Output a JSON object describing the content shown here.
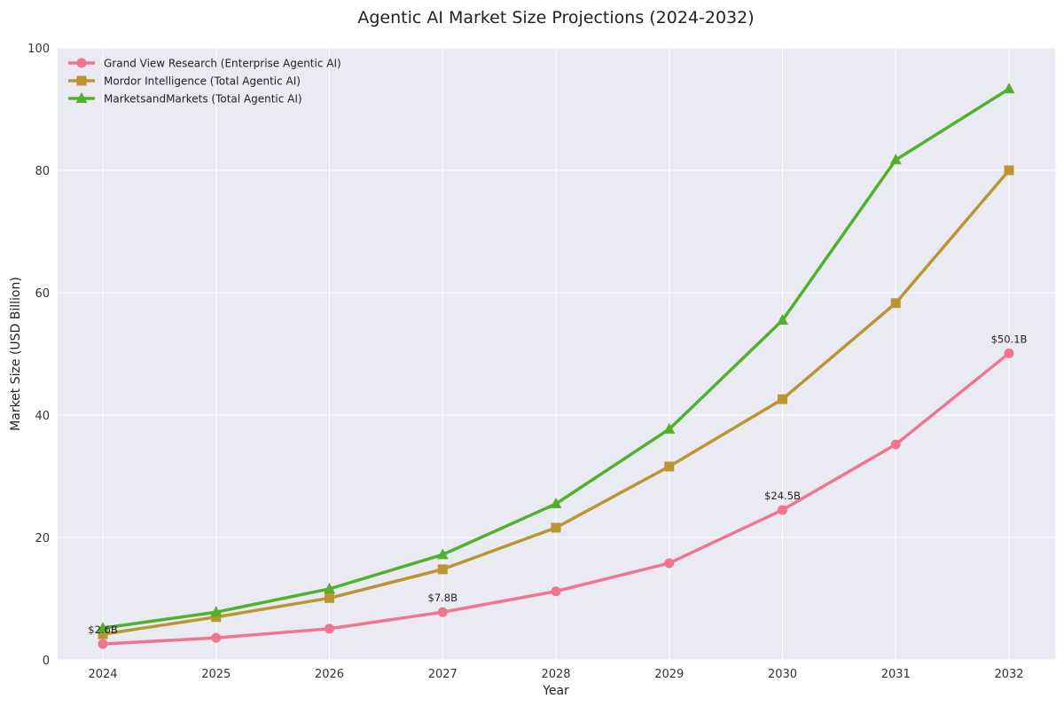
{
  "chart_data": {
    "type": "line",
    "title": "Agentic AI Market Size Projections (2024-2032)",
    "xlabel": "Year",
    "ylabel": "Market Size (USD Billion)",
    "x": [
      2024,
      2025,
      2026,
      2027,
      2028,
      2029,
      2030,
      2031,
      2032
    ],
    "x_tick_labels": [
      "2024",
      "2025",
      "2026",
      "2027",
      "2028",
      "2029",
      "2030",
      "2031",
      "2032"
    ],
    "ylim": [
      0,
      100
    ],
    "y_ticks": [
      0,
      20,
      40,
      60,
      80,
      100
    ],
    "y_tick_labels": [
      "0",
      "20",
      "40",
      "60",
      "80",
      "100"
    ],
    "grid": true,
    "legend_position": "top-left",
    "background": "#eaeaf2",
    "series": [
      {
        "name": "Grand View Research (Enterprise Agentic AI)",
        "color": "#f07590",
        "marker": "circle",
        "values": [
          2.6,
          3.6,
          5.1,
          7.8,
          11.2,
          15.8,
          24.5,
          35.2,
          50.1
        ]
      },
      {
        "name": "Mordor Intelligence (Total Agentic AI)",
        "color": "#bb9534",
        "marker": "square",
        "values": [
          4.2,
          7.0,
          10.1,
          14.8,
          21.6,
          31.6,
          42.6,
          58.3,
          80.0
        ]
      },
      {
        "name": "MarketsandMarkets (Total Agentic AI)",
        "color": "#52b02f",
        "marker": "triangle",
        "values": [
          5.2,
          7.8,
          11.6,
          17.2,
          25.5,
          37.7,
          55.5,
          81.7,
          93.3
        ]
      }
    ],
    "annotations": [
      {
        "text": "$2.6B",
        "x": 2024,
        "y": 2.6
      },
      {
        "text": "$7.8B",
        "x": 2027,
        "y": 7.8
      },
      {
        "text": "$24.5B",
        "x": 2030,
        "y": 24.5
      },
      {
        "text": "$50.1B",
        "x": 2032,
        "y": 50.1
      }
    ]
  }
}
